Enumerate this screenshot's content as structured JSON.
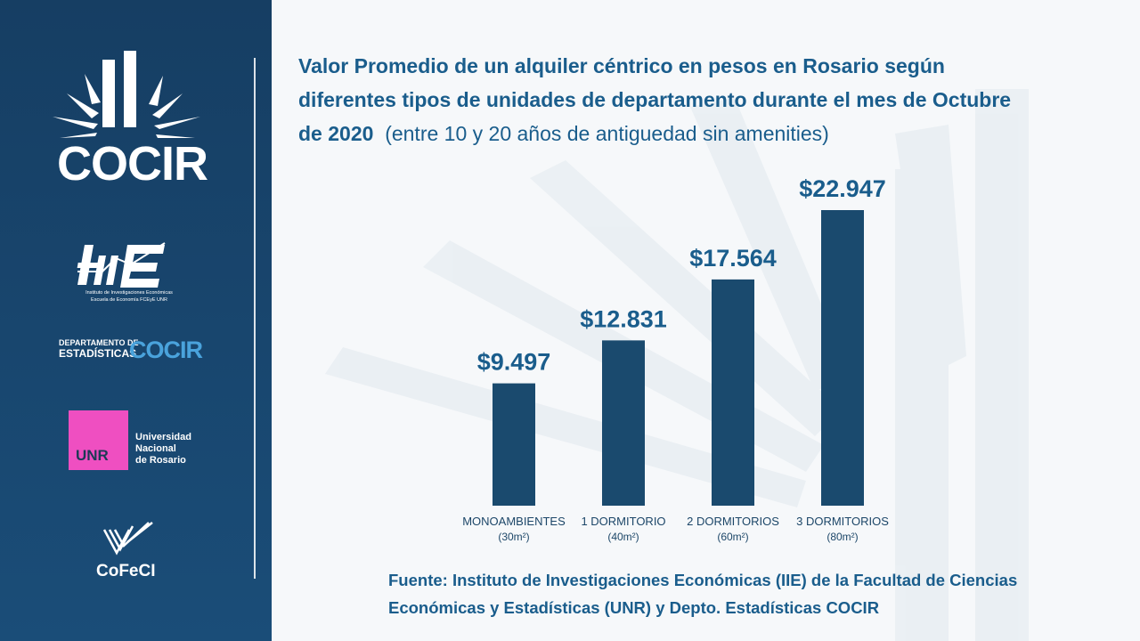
{
  "chart_data": {
    "type": "bar",
    "title": "Valor Promedio de un alquiler céntrico en pesos en Rosario según diferentes tipos de unidades de departamento durante el mes de Octubre de 2020",
    "subtitle": "(entre 10 y 20 años de antiguedad sin amenities)",
    "categories": [
      "MONOAMBIENTES",
      "1 DORMITORIO",
      "2 DORMITORIOS",
      "3 DORMITORIOS"
    ],
    "category_units": [
      "(30m²)",
      "(40m²)",
      "(60m²)",
      "(80m²)"
    ],
    "values": [
      9497,
      12831,
      17564,
      22947
    ],
    "value_labels": [
      "$9.497",
      "$12.831",
      "$17.564",
      "$22.947"
    ],
    "ylim": [
      0,
      22947
    ],
    "xlabel": "",
    "ylabel": "",
    "grid": false,
    "bar_color": "#1a4a6e"
  },
  "title": {
    "bold": "Valor Promedio de un alquiler céntrico en pesos en Rosario según diferentes tipos de unidades de departamento durante el mes de Octubre de 2020",
    "regular": "(entre 10 y 20 años de antiguedad sin amenities)"
  },
  "source": "Fuente: Instituto de Investigaciones Económicas (IIE) de la Facultad de Ciencias Económicas y Estadísticas (UNR) y Depto. Estadísticas COCIR",
  "sidebar": {
    "cocir_logo": "COCIR",
    "iie_name_line1": "Instituto de Investigaciones Económicas",
    "iie_name_line2": "Escuela de Economía FCEyE UNR",
    "dept_line1": "DEPARTAMENTO DE",
    "dept_line2": "ESTADÍSTICAS",
    "dept_brand": "COCIR",
    "unr_abbr": "UNR",
    "unr_line1": "Universidad",
    "unr_line2": "Nacional",
    "unr_line3": "de Rosario",
    "cofeci": "CoFeCI"
  },
  "colors": {
    "sidebar": "#1a4a70",
    "accent": "#1a5d8c",
    "unr_pink": "#ef4fc1",
    "cocir_light_blue": "#4aa3dc"
  }
}
